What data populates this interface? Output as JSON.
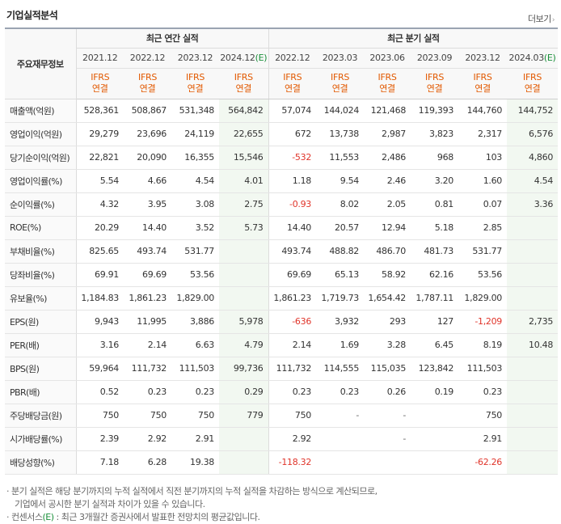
{
  "section_title": "기업실적분석",
  "more_label": "더보기",
  "more_arrow": "›",
  "corner_label": "주요재무정보",
  "groups": {
    "annual": "최근 연간 실적",
    "quarterly": "최근 분기 실적"
  },
  "periods": [
    {
      "label": "2021.12",
      "est": ""
    },
    {
      "label": "2022.12",
      "est": ""
    },
    {
      "label": "2023.12",
      "est": ""
    },
    {
      "label": "2024.12",
      "est": "(E)"
    },
    {
      "label": "2022.12",
      "est": ""
    },
    {
      "label": "2023.03",
      "est": ""
    },
    {
      "label": "2023.06",
      "est": ""
    },
    {
      "label": "2023.09",
      "est": ""
    },
    {
      "label": "2023.12",
      "est": ""
    },
    {
      "label": "2024.03",
      "est": "(E)"
    }
  ],
  "ifrs": {
    "line1": "IFRS",
    "line2": "연결"
  },
  "rows": [
    {
      "label": "매출액(억원)",
      "values": [
        "528,361",
        "508,867",
        "531,348",
        "564,842",
        "57,074",
        "144,024",
        "121,468",
        "119,393",
        "144,760",
        "144,752"
      ]
    },
    {
      "label": "영업이익(억원)",
      "values": [
        "29,279",
        "23,696",
        "24,119",
        "22,655",
        "672",
        "13,738",
        "2,987",
        "3,823",
        "2,317",
        "6,576"
      ]
    },
    {
      "label": "당기순이익(억원)",
      "values": [
        "22,821",
        "20,090",
        "16,355",
        "15,546",
        "-532",
        "11,553",
        "2,486",
        "968",
        "103",
        "4,860"
      ]
    },
    {
      "label": "영업이익률(%)",
      "values": [
        "5.54",
        "4.66",
        "4.54",
        "4.01",
        "1.18",
        "9.54",
        "2.46",
        "3.20",
        "1.60",
        "4.54"
      ]
    },
    {
      "label": "순이익률(%)",
      "values": [
        "4.32",
        "3.95",
        "3.08",
        "2.75",
        "-0.93",
        "8.02",
        "2.05",
        "0.81",
        "0.07",
        "3.36"
      ]
    },
    {
      "label": "ROE(%)",
      "values": [
        "20.29",
        "14.40",
        "3.52",
        "5.73",
        "14.40",
        "20.57",
        "12.94",
        "5.18",
        "2.85",
        ""
      ]
    },
    {
      "label": "부채비율(%)",
      "values": [
        "825.65",
        "493.74",
        "531.77",
        "",
        "493.74",
        "488.82",
        "486.70",
        "481.73",
        "531.77",
        ""
      ]
    },
    {
      "label": "당좌비율(%)",
      "values": [
        "69.91",
        "69.69",
        "53.56",
        "",
        "69.69",
        "65.13",
        "58.92",
        "62.16",
        "53.56",
        ""
      ]
    },
    {
      "label": "유보율(%)",
      "values": [
        "1,184.83",
        "1,861.23",
        "1,829.00",
        "",
        "1,861.23",
        "1,719.73",
        "1,654.42",
        "1,787.11",
        "1,829.00",
        ""
      ]
    },
    {
      "label": "EPS(원)",
      "values": [
        "9,943",
        "11,995",
        "3,886",
        "5,978",
        "-636",
        "3,932",
        "293",
        "127",
        "-1,209",
        "2,735"
      ]
    },
    {
      "label": "PER(배)",
      "values": [
        "3.16",
        "2.14",
        "6.63",
        "4.79",
        "2.14",
        "1.69",
        "3.28",
        "6.45",
        "8.19",
        "10.48"
      ]
    },
    {
      "label": "BPS(원)",
      "values": [
        "59,964",
        "111,732",
        "111,503",
        "99,736",
        "111,732",
        "114,555",
        "115,035",
        "123,842",
        "111,503",
        ""
      ]
    },
    {
      "label": "PBR(배)",
      "values": [
        "0.52",
        "0.23",
        "0.23",
        "0.29",
        "0.23",
        "0.23",
        "0.26",
        "0.19",
        "0.23",
        ""
      ]
    },
    {
      "label": "주당배당금(원)",
      "values": [
        "750",
        "750",
        "750",
        "779",
        "750",
        "-",
        "-",
        "",
        "750",
        ""
      ]
    },
    {
      "label": "시가배당률(%)",
      "values": [
        "2.39",
        "2.92",
        "2.91",
        "",
        "2.92",
        "",
        "-",
        "",
        "2.91",
        ""
      ]
    },
    {
      "label": "배당성향(%)",
      "values": [
        "7.18",
        "6.28",
        "19.38",
        "",
        "-118.32",
        "",
        "",
        "",
        "-62.26",
        ""
      ]
    }
  ],
  "notes": {
    "line1": "· 분기 실적은 해당 분기까지의 누적 실적에서 직전 분기까지의 누적 실적을 차감하는 방식으로 계산되므로,",
    "line2": "  기업에서 공시한 분기 실적과 차이가 있을 수 있습니다.",
    "line3_pre": "· 컨센서스",
    "line3_e": "(E)",
    "line3_post": " : 최근 3개월간 증권사에서 발표한 전망치의 평균값입니다."
  },
  "colors": {
    "negative": "#e0342a",
    "ifrs": "#e25900",
    "estimate_bg": "#f2f8f1",
    "estimate_text": "#1a8f3a"
  }
}
